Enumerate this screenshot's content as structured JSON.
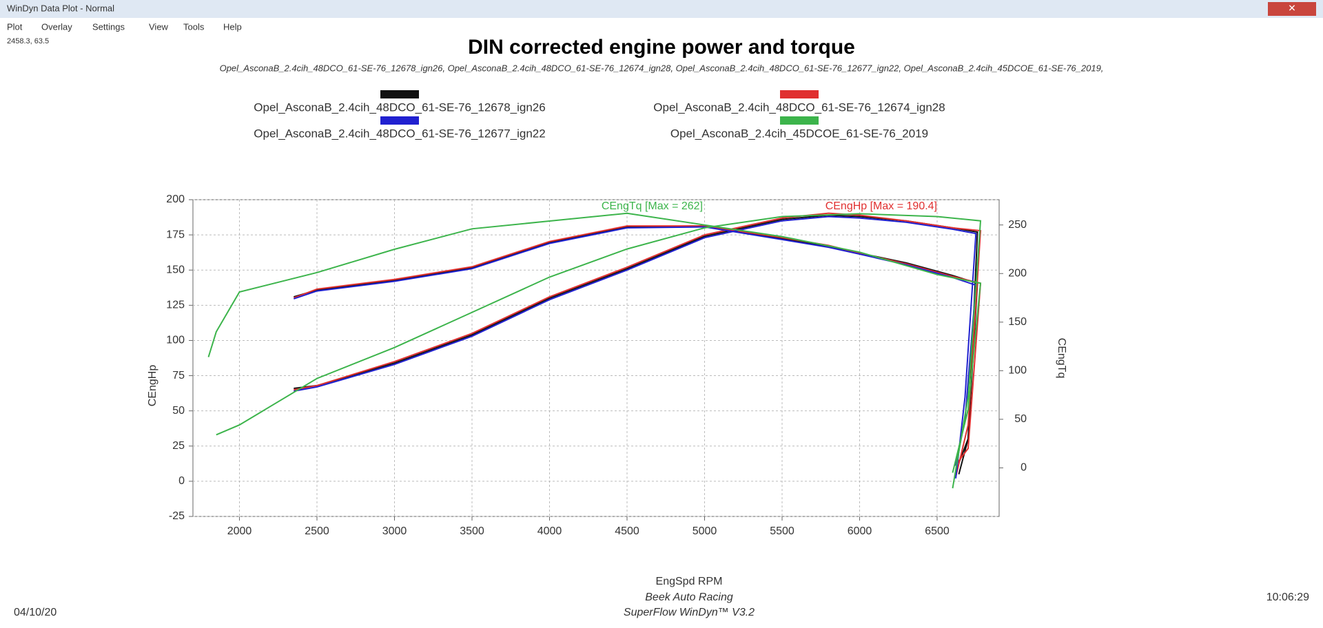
{
  "window": {
    "title": "WinDyn Data Plot - Normal",
    "menu": [
      "Plot",
      "Overlay",
      "Settings",
      "View",
      "Tools",
      "Help"
    ],
    "cursor": "2458.3, 63.5"
  },
  "chart_data": {
    "type": "line",
    "title": "DIN corrected engine power and torque",
    "subtitle": "Opel_AsconaB_2.4cih_48DCO_61-SE-76_12678_ign26, Opel_AsconaB_2.4cih_48DCO_61-SE-76_12674_ign28, Opel_AsconaB_2.4cih_48DCO_61-SE-76_12677_ign22, Opel_AsconaB_2.4cih_45DCOE_61-SE-76_2019,",
    "x_label": "EngSpd RPM",
    "y_label": "CEngHp",
    "y2_label": "CEngTq",
    "xlim": [
      1700,
      6900
    ],
    "xticks": [
      2000,
      2500,
      3000,
      3500,
      4000,
      4500,
      5000,
      5500,
      6000,
      6500
    ],
    "ylim": [
      -25,
      200
    ],
    "yticks": [
      -25,
      0,
      25,
      50,
      75,
      100,
      125,
      150,
      175,
      200
    ],
    "y2lim": [
      -50,
      276
    ],
    "y2ticks": [
      0,
      50,
      100,
      150,
      200,
      250
    ],
    "grid": true,
    "annotations": [
      {
        "text": "CEngTq [Max = 262]",
        "color": "#3cb44b"
      },
      {
        "text": "CEngHp [Max = 190.4]",
        "color": "#e03030"
      }
    ],
    "series": [
      {
        "name": "Opel_AsconaB_2.4cih_48DCO_61-SE-76_12678_ign26",
        "color": "#111111",
        "x": [
          2350,
          2500,
          3000,
          3500,
          4000,
          4500,
          5000,
          5500,
          5800,
          6000,
          6300,
          6600,
          6760,
          6700,
          6640
        ],
        "values": [
          66,
          68,
          84,
          104,
          130,
          151,
          174,
          186,
          189,
          188,
          185,
          180,
          177,
          30,
          5
        ],
        "torque": [
          176,
          183,
          193,
          206,
          232,
          248,
          249,
          236,
          228,
          221,
          211,
          198,
          190,
          30,
          5
        ]
      },
      {
        "name": "Opel_AsconaB_2.4cih_48DCO_61-SE-76_12674_ign28",
        "color": "#e03030",
        "x": [
          2350,
          2500,
          3000,
          3500,
          4000,
          4500,
          5000,
          5500,
          5800,
          6000,
          6300,
          6600,
          6780,
          6700,
          6620
        ],
        "values": [
          65,
          68,
          85,
          105,
          131,
          152,
          175,
          187,
          190.4,
          189,
          185,
          180,
          178,
          40,
          3
        ],
        "torque": [
          175,
          184,
          194,
          207,
          233,
          249,
          249,
          237,
          229,
          221,
          210,
          197,
          190,
          20,
          3
        ]
      },
      {
        "name": "Opel_AsconaB_2.4cih_48DCO_61-SE-76_12677_ign22",
        "color": "#2020d0",
        "x": [
          2350,
          2500,
          3000,
          3500,
          4000,
          4500,
          5000,
          5500,
          5800,
          6000,
          6300,
          6600,
          6750,
          6680,
          6620
        ],
        "values": [
          64,
          67,
          83,
          103,
          129,
          150,
          173,
          185,
          188,
          187,
          184,
          179,
          176,
          60,
          2
        ],
        "torque": [
          174,
          182,
          192,
          205,
          231,
          247,
          248,
          235,
          227,
          220,
          209,
          196,
          188,
          50,
          2
        ]
      },
      {
        "name": "Opel_AsconaB_2.4cih_45DCOE_61-SE-76_2019",
        "color": "#3cb44b",
        "x": [
          1800,
          1850,
          2000,
          2500,
          3000,
          3500,
          4000,
          4500,
          5000,
          5500,
          6000,
          6500,
          6780,
          6700,
          6600
        ],
        "values": [
          null,
          33,
          40,
          73,
          95,
          120,
          145,
          165,
          180,
          188,
          190,
          188,
          185,
          60,
          -5
        ],
        "torque": [
          114,
          140,
          181,
          201,
          225,
          246,
          254,
          262,
          250,
          238,
          222,
          199,
          190,
          60,
          -5
        ]
      }
    ],
    "credits": [
      "Beek Auto Racing",
      "SuperFlow WinDyn™ V3.2"
    ],
    "date": "04/10/20",
    "time": "10:06:29"
  }
}
